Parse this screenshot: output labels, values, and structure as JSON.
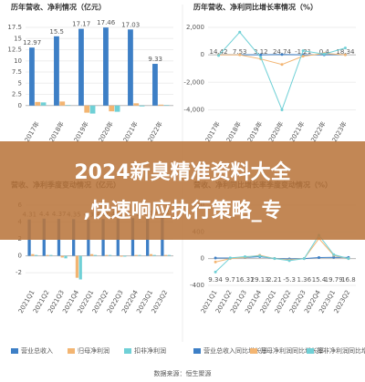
{
  "chart_data": [
    {
      "type": "bar",
      "title": "历年营收、净利情况（亿元）",
      "categories": [
        "2017年",
        "2018年",
        "2019年",
        "2020年",
        "2021年",
        "2022年"
      ],
      "series": [
        {
          "color": "#3d7fc6",
          "values": [
            12.97,
            15.5,
            17.17,
            17.46,
            17.03,
            9.33
          ]
        },
        {
          "color": "#f3b572",
          "values": [
            0.8,
            0.9,
            -1.6,
            -1.3,
            0.5,
            0.2
          ]
        },
        {
          "color": "#6fd0d6",
          "values": [
            0.7,
            0.1,
            -1.8,
            -1.4,
            -0.2,
            0.1
          ]
        }
      ],
      "ylim": [
        -2.5,
        17.5
      ],
      "yticks": [
        0,
        2.5,
        5,
        7.5,
        10,
        12.5,
        15,
        17.5
      ]
    },
    {
      "type": "line",
      "title": "历年营收、净利同比增长率情况（%）",
      "categories": [
        "2017年",
        "2018年",
        "2019年",
        "2020年",
        "2021年",
        "2022年",
        "2023年"
      ],
      "series": [
        {
          "color": "#3d7fc6",
          "values": [
            14.42,
            7.53,
            3.12,
            24.74,
            -1.21,
            0.4,
            18.34
          ]
        },
        {
          "color": "#f3b572",
          "values": [
            0,
            0,
            -300,
            -700,
            -100,
            100,
            0
          ]
        },
        {
          "color": "#6fd0d6",
          "values": [
            -50,
            1650,
            -200,
            -4000,
            300,
            50,
            500
          ]
        }
      ],
      "ylim": [
        -4500,
        2000
      ],
      "yticks": [
        {
          "value": -4000,
          "label": "-4,000"
        },
        {
          "value": -2000,
          "label": "-2,000"
        },
        0,
        {
          "value": 2000,
          "label": "2,000"
        }
      ]
    },
    {
      "type": "bar",
      "title": "营收、净利季度变动情况（亿元）",
      "categories": [
        "2021Q1",
        "2021Q2",
        "2021Q3",
        "2021Q4",
        "2022Q1",
        "2022Q2",
        "2022Q3",
        "2022Q4",
        "2023Q1",
        "2023Q2"
      ],
      "series": [
        {
          "name": "营业总收入",
          "color": "#3d7fc6",
          "values": [
            4.31,
            4.4,
            4.37,
            4.35,
            4.3,
            4.36,
            4.39,
            4.46,
            4.5,
            4.62
          ]
        },
        {
          "name": "归母净利润",
          "color": "#f3b572",
          "values": [
            0.2,
            0.1,
            -0.2,
            -2.6,
            0.2,
            0.1,
            -0.1,
            0.1,
            0.2,
            0.1
          ]
        },
        {
          "name": "扣非净利润",
          "color": "#6fd0d6",
          "values": [
            0.1,
            0.1,
            -0.3,
            -2.8,
            0.1,
            0.1,
            -0.1,
            0.1,
            0.1,
            0.1
          ]
        }
      ],
      "ylim": [
        -3.5,
        6
      ],
      "yticks": [
        -2,
        0,
        2,
        4,
        6
      ]
    },
    {
      "type": "line",
      "title": "营收、净利同比增长率季度变动情况（%）",
      "categories": [
        "2021Q1",
        "2021Q2",
        "2021Q3",
        "2021Q4",
        "2022Q1",
        "2022Q2",
        "2022Q3",
        "2022Q4",
        "2023Q1",
        "2023Q2"
      ],
      "series": [
        {
          "name": "营业总收入同比增长率",
          "color": "#3d7fc6",
          "values": [
            9.34,
            9.7,
            16.31,
            29.13,
            2.21,
            -5.3,
            1.36,
            15.4,
            19.79,
            16.8
          ]
        },
        {
          "name": "归母净利润同比增长率",
          "color": "#f3b572",
          "values": [
            -50,
            0,
            20,
            50,
            0,
            -20,
            0,
            300,
            50,
            0
          ]
        },
        {
          "name": "扣非净利润同比增长率",
          "color": "#6fd0d6",
          "values": [
            -200,
            10,
            30,
            40,
            0,
            -30,
            0,
            350,
            60,
            0
          ]
        }
      ],
      "ylim": [
        -400,
        800
      ],
      "yticks": [
        -400,
        0,
        400,
        800
      ]
    }
  ],
  "banner": {
    "line1": "2024新臭精准资料大全",
    "line2": ",快速响应执行策略_专"
  },
  "source": "数据来源：恒生聚源"
}
